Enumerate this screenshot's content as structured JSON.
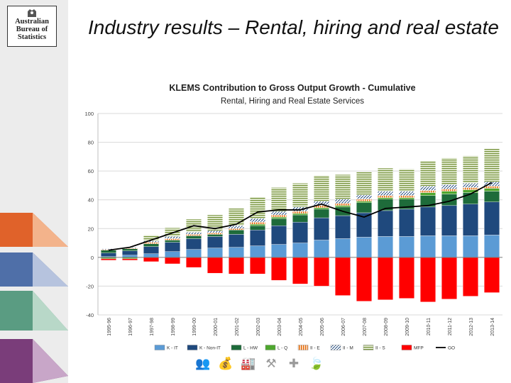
{
  "slide": {
    "title": "Industry results – Rental, hiring and real estate",
    "logo_lines": [
      "Australian",
      "Bureau of",
      "Statistics"
    ]
  },
  "icons": [
    "people-icon",
    "money-bag-icon",
    "factory-icon",
    "tools-icon",
    "health-cross-icon",
    "leaf-icon"
  ],
  "colors": {
    "K - IT": "#5b9bd5",
    "K - Non-IT": "#1f497d",
    "L - HW": "#1e6b3a",
    "L - Q": "#4ea72e",
    "II - E": "#f5c07a",
    "II - M": "#b8cce4",
    "II - S": "#c4d79b",
    "MFP": "#ff0000",
    "GO": "#000000"
  },
  "chart_data": {
    "type": "bar",
    "stacked": true,
    "title": "KLEMS Contribution to Gross Output Growth - Cumulative",
    "subtitle": "Rental, Hiring and Real Estate Services",
    "xlabel": "",
    "ylabel": "",
    "ylim": [
      -40,
      100
    ],
    "yticks": [
      -40,
      -20,
      0,
      20,
      40,
      60,
      80,
      100
    ],
    "grid": true,
    "legend": "bottom",
    "categories": [
      "1995-96",
      "1996-97",
      "1997-98",
      "1998-99",
      "1999-00",
      "2000-01",
      "2001-02",
      "2002-03",
      "2003-04",
      "2004-05",
      "2005-06",
      "2006-07",
      "2007-08",
      "2008-09",
      "2009-10",
      "2010-11",
      "2011-12",
      "2012-13",
      "2013-14"
    ],
    "series": [
      {
        "name": "K - IT",
        "values": [
          0.5,
          1.5,
          2.5,
          4,
          5.5,
          6.5,
          7,
          8,
          9,
          10,
          12,
          13,
          14,
          14.5,
          14.5,
          15,
          15,
          15,
          15.5
        ]
      },
      {
        "name": "K - Non-IT",
        "values": [
          2.5,
          3,
          5,
          6.5,
          7.5,
          8,
          9,
          11,
          13,
          14.5,
          15.5,
          16,
          17,
          18,
          19,
          20,
          21,
          22,
          23
        ]
      },
      {
        "name": "L - HW",
        "values": [
          2,
          1.5,
          2,
          1.5,
          2,
          1.5,
          3,
          3,
          5,
          5,
          6,
          6,
          7,
          8,
          7,
          8,
          8,
          8,
          7.5
        ]
      },
      {
        "name": "L - Q",
        "values": [
          -1,
          -1,
          0,
          0,
          0,
          0,
          0,
          1,
          1,
          1,
          1,
          1,
          1,
          1,
          1,
          2,
          2,
          2,
          2
        ]
      },
      {
        "name": "II - E",
        "values": [
          0.5,
          0.5,
          1,
          1,
          1,
          1,
          1,
          1.5,
          1.5,
          1.5,
          1.5,
          1.5,
          1.5,
          1.5,
          1.5,
          1.5,
          1.5,
          1.5,
          1.5
        ]
      },
      {
        "name": "II - M",
        "values": [
          0.5,
          0.5,
          1,
          1.5,
          1.5,
          1.5,
          2,
          2.5,
          2.5,
          3,
          3,
          3,
          3,
          3,
          3,
          3,
          3,
          3,
          3
        ]
      },
      {
        "name": "II - S",
        "values": [
          0,
          0,
          4,
          6,
          9,
          11,
          12,
          15,
          16.5,
          16.5,
          18,
          17,
          16,
          16,
          15.5,
          17.5,
          18.5,
          19,
          23
        ]
      },
      {
        "name": "MFP",
        "values": [
          -1,
          -1,
          -3,
          -4.5,
          -7,
          -11,
          -11.5,
          -11.5,
          -16,
          -18.5,
          -20,
          -26.5,
          -30.5,
          -29.5,
          -28.5,
          -31,
          -29,
          -27,
          -24.5
        ]
      }
    ],
    "line": {
      "name": "GO",
      "values": [
        5,
        7,
        12,
        17,
        22,
        20,
        23,
        31.5,
        33,
        33,
        37,
        32,
        28,
        34,
        35,
        36,
        39,
        44,
        52
      ]
    }
  }
}
